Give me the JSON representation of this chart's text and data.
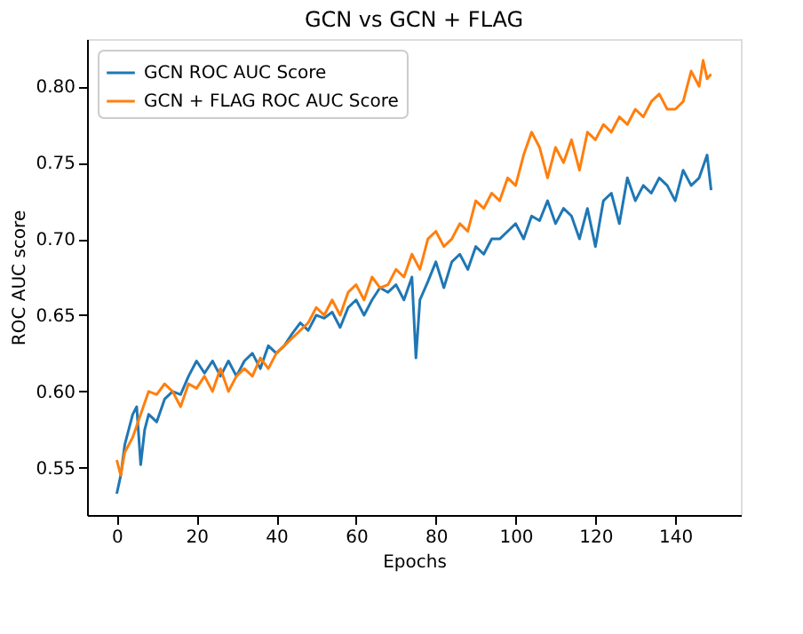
{
  "chart_data": {
    "type": "line",
    "title": "GCN vs GCN + FLAG",
    "xlabel": "Epochs",
    "ylabel": "ROC AUC score",
    "xlim": [
      -7.45,
      156.45
    ],
    "ylim": [
      0.519,
      0.831
    ],
    "xticks": [
      0,
      20,
      40,
      60,
      80,
      100,
      120,
      140
    ],
    "yticks": [
      {
        "value": 0.55,
        "label": "0.55"
      },
      {
        "value": 0.6,
        "label": "0.60"
      },
      {
        "value": 0.65,
        "label": "0.65"
      },
      {
        "value": 0.7,
        "label": "0.70"
      },
      {
        "value": 0.75,
        "label": "0.75"
      },
      {
        "value": 0.8,
        "label": "0.80"
      }
    ],
    "grid": false,
    "legend": "top left",
    "marker": "none",
    "line_style": "solid",
    "series": [
      {
        "name": "GCN ROC AUC Score",
        "color": "#1f77b4",
        "x": [
          0,
          1,
          2,
          4,
          5,
          6,
          7,
          8,
          10,
          12,
          14,
          16,
          18,
          20,
          22,
          24,
          26,
          28,
          30,
          32,
          34,
          36,
          38,
          40,
          42,
          44,
          46,
          48,
          50,
          52,
          54,
          56,
          58,
          60,
          62,
          64,
          66,
          68,
          70,
          72,
          74,
          75,
          76,
          78,
          80,
          82,
          84,
          86,
          88,
          90,
          92,
          94,
          96,
          98,
          100,
          102,
          104,
          106,
          108,
          110,
          112,
          114,
          116,
          118,
          120,
          122,
          124,
          126,
          128,
          130,
          132,
          134,
          136,
          138,
          140,
          142,
          144,
          146,
          148,
          149
        ],
        "values": [
          0.533,
          0.545,
          0.565,
          0.585,
          0.59,
          0.552,
          0.575,
          0.585,
          0.58,
          0.595,
          0.6,
          0.598,
          0.61,
          0.62,
          0.612,
          0.62,
          0.61,
          0.62,
          0.61,
          0.62,
          0.625,
          0.615,
          0.63,
          0.625,
          0.63,
          0.638,
          0.645,
          0.64,
          0.65,
          0.648,
          0.652,
          0.642,
          0.655,
          0.66,
          0.65,
          0.66,
          0.668,
          0.665,
          0.67,
          0.66,
          0.675,
          0.622,
          0.66,
          0.672,
          0.685,
          0.668,
          0.685,
          0.69,
          0.68,
          0.695,
          0.69,
          0.7,
          0.7,
          0.705,
          0.71,
          0.7,
          0.715,
          0.712,
          0.725,
          0.71,
          0.72,
          0.715,
          0.7,
          0.72,
          0.695,
          0.725,
          0.73,
          0.71,
          0.74,
          0.725,
          0.735,
          0.73,
          0.74,
          0.735,
          0.725,
          0.745,
          0.735,
          0.74,
          0.755,
          0.732
        ]
      },
      {
        "name": "GCN + FLAG ROC AUC Score",
        "color": "#ff7f0e",
        "x": [
          0,
          1,
          2,
          4,
          6,
          8,
          10,
          12,
          14,
          16,
          18,
          20,
          22,
          24,
          26,
          28,
          30,
          32,
          34,
          36,
          38,
          40,
          42,
          44,
          46,
          48,
          50,
          52,
          54,
          56,
          58,
          60,
          62,
          64,
          66,
          68,
          70,
          72,
          74,
          76,
          78,
          80,
          82,
          84,
          86,
          88,
          90,
          92,
          94,
          96,
          98,
          100,
          102,
          104,
          106,
          108,
          110,
          112,
          114,
          116,
          118,
          120,
          122,
          124,
          126,
          128,
          130,
          132,
          134,
          136,
          138,
          140,
          142,
          144,
          146,
          147,
          148,
          149
        ],
        "values": [
          0.555,
          0.545,
          0.56,
          0.57,
          0.585,
          0.6,
          0.598,
          0.605,
          0.6,
          0.59,
          0.605,
          0.602,
          0.61,
          0.6,
          0.615,
          0.6,
          0.61,
          0.615,
          0.61,
          0.622,
          0.615,
          0.625,
          0.63,
          0.635,
          0.64,
          0.645,
          0.655,
          0.65,
          0.66,
          0.65,
          0.665,
          0.67,
          0.66,
          0.675,
          0.668,
          0.67,
          0.68,
          0.675,
          0.69,
          0.68,
          0.7,
          0.705,
          0.695,
          0.7,
          0.71,
          0.705,
          0.725,
          0.72,
          0.73,
          0.725,
          0.74,
          0.735,
          0.755,
          0.77,
          0.76,
          0.74,
          0.76,
          0.75,
          0.765,
          0.745,
          0.77,
          0.765,
          0.775,
          0.77,
          0.78,
          0.775,
          0.785,
          0.78,
          0.79,
          0.795,
          0.785,
          0.785,
          0.79,
          0.81,
          0.8,
          0.817,
          0.805,
          0.808
        ]
      }
    ]
  }
}
